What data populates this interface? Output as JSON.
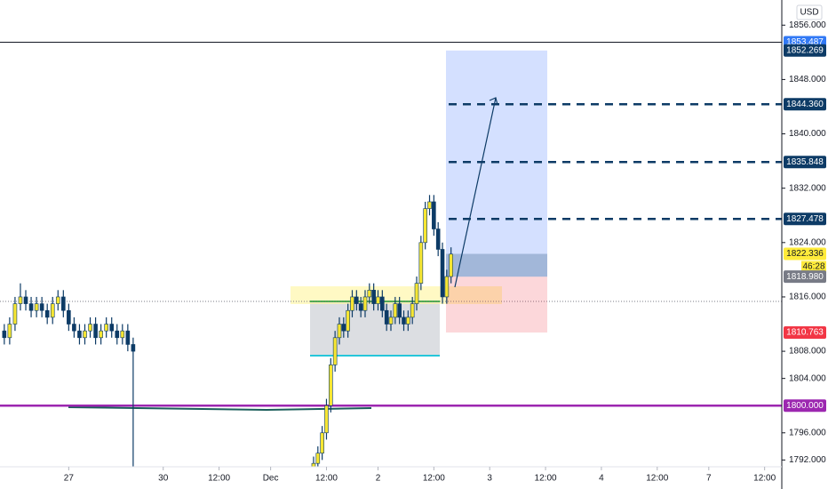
{
  "chart_data": {
    "type": "candlestick",
    "currency": "USD",
    "countdown": "46:28",
    "up_color": "#f7e633",
    "down_color": "#0d3b66",
    "xlim": [
      -16,
      166
    ],
    "ylim": [
      1791,
      1859.7
    ],
    "x": [
      -15,
      -13.75,
      -12.5,
      -11.25,
      -10,
      -8.75,
      -7.5,
      -6.25,
      -5,
      -3.75,
      -2.5,
      -1.25,
      0,
      1.25,
      2.5,
      3.75,
      5,
      6.25,
      7.5,
      8.75,
      10,
      11.25,
      12.5,
      13.75,
      15,
      57,
      58,
      59,
      60,
      61,
      62,
      63,
      64,
      65,
      66,
      67,
      68,
      69,
      70,
      71,
      72,
      73,
      74,
      75,
      76,
      77,
      78,
      79,
      80,
      81,
      82,
      83,
      84,
      85,
      86,
      87,
      88,
      89
    ],
    "open": [
      1811,
      1810,
      1812,
      1815,
      1816,
      1815,
      1814,
      1815,
      1814,
      1813,
      1815,
      1816,
      1814,
      1812,
      1811,
      1810,
      1811,
      1812,
      1810,
      1811,
      1812,
      1811,
      1810,
      1811,
      1809,
      1791,
      1791.5,
      1793,
      1796,
      1800,
      1806,
      1810,
      1812,
      1811,
      1814,
      1816,
      1815,
      1814,
      1816,
      1817,
      1815,
      1816,
      1814,
      1812,
      1813,
      1815,
      1813,
      1812,
      1813,
      1815,
      1818,
      1824,
      1829,
      1830,
      1826,
      1823,
      1816,
      1819
    ],
    "high": [
      1812,
      1813,
      1816,
      1818,
      1817,
      1816,
      1816,
      1816,
      1815,
      1816,
      1817,
      1817,
      1815,
      1813,
      1812,
      1812,
      1813,
      1813,
      1812,
      1813,
      1813,
      1812,
      1812,
      1812,
      1810,
      1792.5,
      1794,
      1797,
      1801,
      1807,
      1811,
      1813,
      1813,
      1815,
      1817,
      1817,
      1816,
      1817,
      1818,
      1818,
      1817,
      1817,
      1815,
      1814,
      1816,
      1816,
      1814,
      1814,
      1816,
      1819,
      1825,
      1830,
      1831,
      1831,
      1827,
      1824,
      1820,
      1823.3
    ],
    "low": [
      1809,
      1809,
      1811,
      1814,
      1814,
      1813,
      1813,
      1813,
      1812,
      1812,
      1814,
      1813,
      1811,
      1810,
      1809,
      1809,
      1810,
      1809,
      1809,
      1810,
      1810,
      1809,
      1809,
      1808,
      1791,
      1791,
      1791,
      1792,
      1795,
      1799,
      1805,
      1809,
      1810,
      1810,
      1813,
      1814,
      1813,
      1813,
      1815,
      1814,
      1814,
      1813,
      1811,
      1811,
      1812,
      1812,
      1811,
      1811,
      1812,
      1814,
      1817,
      1823,
      1828,
      1825,
      1822,
      1815,
      1815,
      1818
    ],
    "close": [
      1810,
      1812,
      1815,
      1816,
      1815,
      1814,
      1815,
      1814,
      1813,
      1815,
      1816,
      1814,
      1812,
      1811,
      1810,
      1811,
      1812,
      1810,
      1811,
      1812,
      1811,
      1810,
      1811,
      1809,
      1808,
      1791.5,
      1793,
      1796,
      1800,
      1806,
      1810,
      1812,
      1811,
      1814,
      1816,
      1815,
      1814,
      1816,
      1817,
      1815,
      1816,
      1814,
      1812,
      1813,
      1815,
      1813,
      1812,
      1813,
      1815,
      1818,
      1824,
      1829,
      1830,
      1826,
      1823,
      1816,
      1819,
      1822.3
    ],
    "xticks": [
      {
        "value": 0,
        "label": "27"
      },
      {
        "value": 22,
        "label": "30"
      },
      {
        "value": 35,
        "label": "12:00"
      },
      {
        "value": 47,
        "label": "Dec"
      },
      {
        "value": 60,
        "label": "12:00"
      },
      {
        "value": 72,
        "label": "2"
      },
      {
        "value": 85,
        "label": "12:00"
      },
      {
        "value": 98,
        "label": "3"
      },
      {
        "value": 111,
        "label": "12:00"
      },
      {
        "value": 124,
        "label": "4"
      },
      {
        "value": 137,
        "label": "12:00"
      },
      {
        "value": 149,
        "label": "7"
      },
      {
        "value": 162,
        "label": "12:00"
      }
    ],
    "yticks": [
      {
        "value": 1856,
        "label": "1856.000"
      },
      {
        "value": 1848,
        "label": "1848.000"
      },
      {
        "value": 1840,
        "label": "1840.000"
      },
      {
        "value": 1832,
        "label": "1832.000"
      },
      {
        "value": 1824,
        "label": "1824.000"
      },
      {
        "value": 1816,
        "label": "1816.000"
      },
      {
        "value": 1808,
        "label": "1808.000"
      },
      {
        "value": 1804,
        "label": "1804.000"
      },
      {
        "value": 1796,
        "label": "1796.000"
      },
      {
        "value": 1792,
        "label": "1792.000"
      }
    ],
    "price_labels": [
      {
        "value": 1853.487,
        "label": "1853.487",
        "color": "#3179f5"
      },
      {
        "value": 1852.269,
        "label": "1852.269",
        "color": "#0d3b66"
      },
      {
        "value": 1844.36,
        "label": "1844.360",
        "color": "#0d3b66"
      },
      {
        "value": 1835.848,
        "label": "1835.848",
        "color": "#0d3b66"
      },
      {
        "value": 1827.478,
        "label": "1827.478",
        "color": "#0d3b66"
      },
      {
        "value": 1822.336,
        "label": "1822.336",
        "color": "#ffeb3b"
      },
      {
        "value": 1818.98,
        "label": "1818.980",
        "color": "#787b86"
      },
      {
        "value": 1810.763,
        "label": "1810.763",
        "color": "#f23645"
      },
      {
        "value": 1800,
        "label": "1800.000",
        "color": "#9c27b0"
      }
    ]
  }
}
